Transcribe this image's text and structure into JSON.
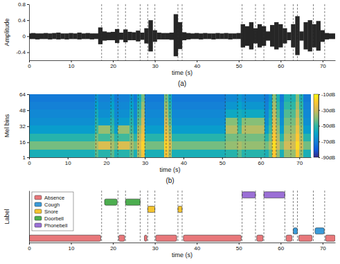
{
  "chart_data": [
    {
      "type": "waveform",
      "caption": "(a)",
      "x_label": "time (s)",
      "y_label": "Amplitude",
      "x": [
        0,
        1,
        2,
        3,
        4,
        5,
        6,
        7,
        8,
        9,
        10,
        11,
        12,
        13,
        14,
        15,
        16,
        17,
        18,
        19,
        20,
        21,
        22,
        23,
        24,
        25,
        26,
        27,
        28,
        29,
        30,
        31,
        32,
        33,
        34,
        35,
        36,
        37,
        38,
        39,
        40,
        41,
        42,
        43,
        44,
        45,
        46,
        47,
        48,
        49,
        50,
        51,
        52,
        53,
        54,
        55,
        56,
        57,
        58,
        59,
        60,
        61,
        62,
        63,
        64,
        65,
        66,
        67,
        68,
        69,
        70,
        71,
        72,
        73
      ],
      "series": [
        {
          "color": "#262626",
          "values": [
            0.07,
            0.08,
            0.07,
            0.07,
            0.08,
            0.07,
            0.08,
            0.09,
            0.07,
            0.07,
            0.08,
            0.07,
            0.09,
            0.07,
            0.08,
            0.07,
            0.07,
            0.22,
            0.12,
            0.1,
            0.11,
            0.18,
            0.09,
            0.17,
            0.11,
            0.1,
            0.14,
            0.09,
            0.2,
            0.4,
            0.15,
            0.09,
            0.08,
            0.08,
            0.09,
            0.55,
            0.35,
            0.1,
            0.08,
            0.07,
            0.08,
            0.07,
            0.08,
            0.07,
            0.07,
            0.08,
            0.07,
            0.08,
            0.07,
            0.07,
            0.08,
            0.3,
            0.25,
            0.35,
            0.2,
            0.3,
            0.25,
            0.12,
            0.28,
            0.35,
            0.3,
            0.2,
            0.1,
            0.3,
            0.5,
            0.12,
            0.35,
            0.4,
            0.3,
            0.38,
            0.15,
            0.08,
            0.07,
            0.07
          ]
        },
        {
          "color": "#262626",
          "values": [
            -0.07,
            -0.07,
            -0.08,
            -0.07,
            -0.07,
            -0.08,
            -0.07,
            -0.08,
            -0.07,
            -0.08,
            -0.07,
            -0.07,
            -0.08,
            -0.07,
            -0.07,
            -0.08,
            -0.07,
            -0.2,
            -0.11,
            -0.1,
            -0.1,
            -0.17,
            -0.09,
            -0.15,
            -0.1,
            -0.1,
            -0.13,
            -0.09,
            -0.18,
            -0.38,
            -0.14,
            -0.08,
            -0.08,
            -0.08,
            -0.09,
            -0.5,
            -0.32,
            -0.1,
            -0.08,
            -0.07,
            -0.07,
            -0.08,
            -0.07,
            -0.07,
            -0.08,
            -0.07,
            -0.07,
            -0.07,
            -0.08,
            -0.07,
            -0.07,
            -0.28,
            -0.24,
            -0.33,
            -0.18,
            -0.28,
            -0.24,
            -0.11,
            -0.26,
            -0.33,
            -0.28,
            -0.18,
            -0.1,
            -0.28,
            -0.47,
            -0.11,
            -0.33,
            -0.38,
            -0.28,
            -0.36,
            -0.14,
            -0.08,
            -0.07,
            -0.07
          ]
        }
      ],
      "xlim": [
        0,
        73
      ],
      "xticks": [
        0,
        10,
        20,
        30,
        40,
        50,
        60,
        70
      ],
      "ylim": [
        -0.6,
        0.8
      ],
      "yticks": [
        -0.4,
        0,
        0.4,
        0.8
      ],
      "boundaries": [
        17.3,
        21.2,
        23,
        26.5,
        28.3,
        30,
        35.5,
        36.5,
        50.8,
        54,
        56,
        61,
        63,
        64,
        67.8,
        70.5
      ]
    },
    {
      "type": "heatmap",
      "caption": "(b)",
      "x_label": "time (s)",
      "y_label": "Mel bins",
      "x_edges": [
        0,
        17,
        18,
        21,
        22,
        23,
        26,
        27,
        28,
        29,
        30,
        35,
        36,
        37,
        51,
        54,
        55,
        61,
        62,
        63,
        64,
        65,
        66,
        69,
        70,
        71,
        73
      ],
      "y_edges": [
        1,
        9,
        17,
        25,
        33,
        41,
        49,
        57,
        64
      ],
      "values": [
        [
          -55,
          -45,
          -52,
          -45,
          -55,
          -52,
          -45,
          -55,
          -35,
          -22,
          -55,
          -22,
          -35,
          -55,
          -52,
          -45,
          -52,
          -55,
          -45,
          -20,
          -38,
          -55,
          -38,
          -20,
          -38,
          -55
        ],
        [
          -42,
          -35,
          -28,
          -35,
          -42,
          -28,
          -35,
          -42,
          -28,
          -18,
          -42,
          -18,
          -28,
          -42,
          -38,
          -35,
          -38,
          -42,
          -35,
          -16,
          -30,
          -42,
          -30,
          -16,
          -30,
          -42
        ],
        [
          -52,
          -42,
          -48,
          -42,
          -52,
          -48,
          -42,
          -52,
          -33,
          -22,
          -52,
          -22,
          -33,
          -52,
          -42,
          -42,
          -42,
          -52,
          -42,
          -20,
          -34,
          -52,
          -34,
          -20,
          -34,
          -52
        ],
        [
          -62,
          -48,
          -38,
          -48,
          -62,
          -38,
          -48,
          -62,
          -38,
          -26,
          -62,
          -26,
          -38,
          -62,
          -34,
          -48,
          -34,
          -62,
          -48,
          -24,
          -38,
          -62,
          -38,
          -24,
          -38,
          -62
        ],
        [
          -66,
          -52,
          -62,
          -52,
          -66,
          -62,
          -52,
          -66,
          -44,
          -30,
          -66,
          -30,
          -44,
          -66,
          -40,
          -52,
          -40,
          -66,
          -52,
          -28,
          -42,
          -66,
          -42,
          -28,
          -42,
          -66
        ],
        [
          -68,
          -56,
          -66,
          -56,
          -68,
          -66,
          -56,
          -68,
          -48,
          -34,
          -68,
          -34,
          -48,
          -68,
          -58,
          -56,
          -58,
          -68,
          -56,
          -32,
          -46,
          -68,
          -46,
          -32,
          -46,
          -68
        ],
        [
          -70,
          -60,
          -68,
          -60,
          -70,
          -68,
          -60,
          -70,
          -52,
          -38,
          -70,
          -38,
          -52,
          -70,
          -64,
          -60,
          -64,
          -70,
          -60,
          -36,
          -50,
          -70,
          -50,
          -36,
          -50,
          -70
        ],
        [
          -72,
          -64,
          -70,
          -64,
          -72,
          -70,
          -64,
          -72,
          -56,
          -42,
          -72,
          -42,
          -56,
          -72,
          -68,
          -64,
          -68,
          -72,
          -64,
          -40,
          -54,
          -72,
          -54,
          -40,
          -54,
          -72
        ]
      ],
      "xlim": [
        0,
        73
      ],
      "xticks": [
        0,
        10,
        20,
        30,
        40,
        50,
        60,
        70
      ],
      "ylim": [
        1,
        64
      ],
      "yticks": [
        1,
        16,
        32,
        48,
        64
      ],
      "colorbar": {
        "range": [
          -90,
          -10
        ],
        "ticks": [
          {
            "value": -10,
            "label": "-10dB"
          },
          {
            "value": -30,
            "label": "-30dB"
          },
          {
            "value": -50,
            "label": "-50dB"
          },
          {
            "value": -70,
            "label": "-70dB"
          },
          {
            "value": -90,
            "label": "-90dB"
          }
        ]
      },
      "boundaries": [
        17.3,
        21.2,
        23,
        26.5,
        28.3,
        30,
        35.5,
        36.5,
        50.8,
        54,
        56,
        61,
        63,
        64,
        67.8,
        70.5
      ]
    },
    {
      "type": "timeline",
      "x_label": "time (s)",
      "y_label": "Label",
      "legend": "top-left",
      "tick_labels": "x",
      "xlim": [
        0,
        73
      ],
      "xticks": [
        0,
        10,
        20,
        30,
        40,
        50,
        60,
        70
      ],
      "ylim": [
        -0.6,
        6.6
      ],
      "series": [
        {
          "name": "Absence",
          "color": "#e8777a",
          "y": 0,
          "values": [
            [
              0,
              17.1
            ],
            [
              21.4,
              22.8
            ],
            [
              27.5,
              28.1
            ],
            [
              30.2,
              35.2
            ],
            [
              36.8,
              50.6
            ],
            [
              54.3,
              55.8
            ],
            [
              61.3,
              62.7
            ],
            [
              64.3,
              67.5
            ],
            [
              70.7,
              73
            ]
          ]
        },
        {
          "name": "Cough",
          "color": "#3a9ad9",
          "y": 1,
          "values": [
            [
              63,
              64
            ],
            [
              68.2,
              70.4
            ]
          ]
        },
        {
          "name": "Snore",
          "color": "#f4c430",
          "y": 4,
          "values": [
            [
              28.3,
              30
            ],
            [
              35.5,
              36.5
            ]
          ]
        },
        {
          "name": "Doorbell",
          "color": "#4cae4f",
          "y": 5,
          "values": [
            [
              18,
              21
            ],
            [
              23,
              26.5
            ]
          ]
        },
        {
          "name": "Phonebell",
          "color": "#9b6fd6",
          "y": 6,
          "values": [
            [
              50.8,
              54
            ],
            [
              56,
              61
            ]
          ]
        }
      ],
      "boundaries": [
        17.3,
        21.2,
        23,
        26.5,
        28.3,
        30,
        35.5,
        36.5,
        50.8,
        54,
        56,
        61,
        63,
        64,
        67.8,
        70.5
      ]
    }
  ]
}
